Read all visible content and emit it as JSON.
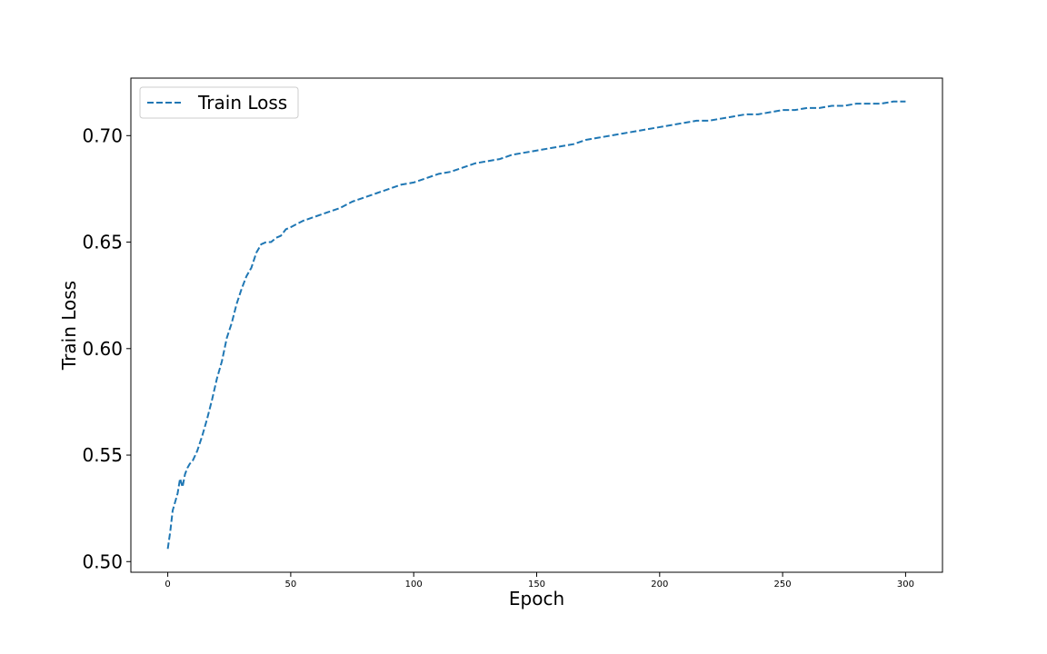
{
  "chart_data": {
    "type": "line",
    "title": "",
    "xlabel": "Epoch",
    "ylabel": "Train Loss",
    "xlim": [
      -15,
      315
    ],
    "ylim": [
      0.495,
      0.727
    ],
    "x_ticks": [
      0,
      50,
      100,
      150,
      200,
      250,
      300
    ],
    "y_ticks": [
      0.5,
      0.55,
      0.6,
      0.65,
      0.7
    ],
    "grid": false,
    "legend": {
      "position": "upper-left",
      "entries": [
        "Train Loss"
      ]
    },
    "series": [
      {
        "name": "Train Loss",
        "color": "#1f77b4",
        "line_style": "dashed",
        "x": [
          0,
          1,
          2,
          3,
          4,
          5,
          6,
          7,
          8,
          9,
          10,
          12,
          14,
          16,
          18,
          20,
          22,
          24,
          26,
          28,
          30,
          32,
          34,
          36,
          38,
          40,
          42,
          44,
          46,
          48,
          50,
          55,
          60,
          65,
          70,
          75,
          80,
          85,
          90,
          95,
          100,
          105,
          110,
          115,
          120,
          125,
          130,
          135,
          140,
          145,
          150,
          155,
          160,
          165,
          170,
          175,
          180,
          185,
          190,
          195,
          200,
          205,
          210,
          215,
          220,
          225,
          230,
          235,
          240,
          245,
          250,
          255,
          260,
          265,
          270,
          275,
          280,
          285,
          290,
          295,
          300
        ],
        "y": [
          0.506,
          0.514,
          0.524,
          0.528,
          0.532,
          0.539,
          0.535,
          0.541,
          0.544,
          0.546,
          0.547,
          0.552,
          0.559,
          0.567,
          0.576,
          0.586,
          0.594,
          0.605,
          0.612,
          0.621,
          0.628,
          0.634,
          0.638,
          0.645,
          0.649,
          0.65,
          0.65,
          0.652,
          0.653,
          0.656,
          0.657,
          0.66,
          0.662,
          0.664,
          0.666,
          0.669,
          0.671,
          0.673,
          0.675,
          0.677,
          0.678,
          0.68,
          0.682,
          0.683,
          0.685,
          0.687,
          0.688,
          0.689,
          0.691,
          0.692,
          0.693,
          0.694,
          0.695,
          0.696,
          0.698,
          0.699,
          0.7,
          0.701,
          0.702,
          0.703,
          0.704,
          0.705,
          0.706,
          0.707,
          0.707,
          0.708,
          0.709,
          0.71,
          0.71,
          0.711,
          0.712,
          0.712,
          0.713,
          0.713,
          0.714,
          0.714,
          0.715,
          0.715,
          0.715,
          0.716,
          0.716
        ]
      }
    ]
  }
}
